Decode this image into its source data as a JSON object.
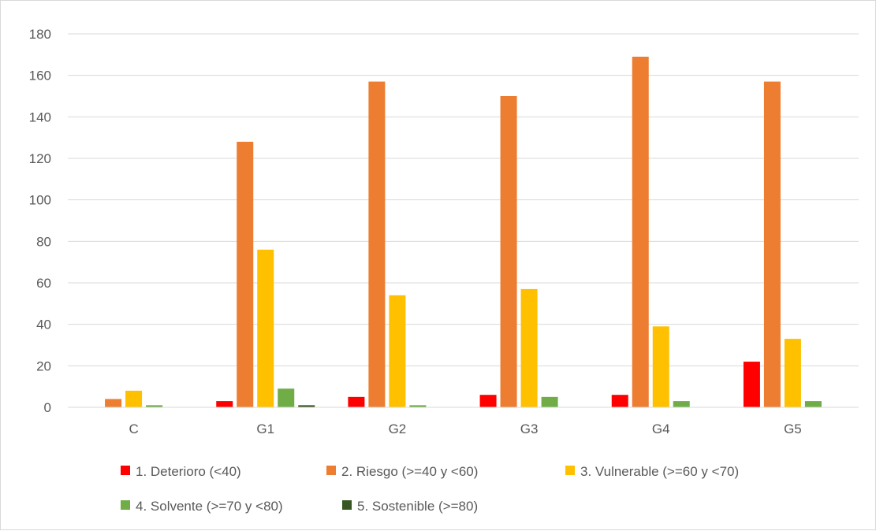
{
  "chart_data": {
    "type": "bar",
    "categories": [
      "C",
      "G1",
      "G2",
      "G3",
      "G4",
      "G5"
    ],
    "series": [
      {
        "name": "1. Deterioro (<40)",
        "color": "#ff0000",
        "values": [
          0,
          3,
          5,
          6,
          6,
          22
        ]
      },
      {
        "name": "2. Riesgo (>=40 y <60)",
        "color": "#ed7d31",
        "values": [
          4,
          128,
          157,
          150,
          169,
          157
        ]
      },
      {
        "name": "3. Vulnerable (>=60 y <70)",
        "color": "#ffc000",
        "values": [
          8,
          76,
          54,
          57,
          39,
          33
        ]
      },
      {
        "name": "4. Solvente (>=70 y <80)",
        "color": "#70ad47",
        "values": [
          1,
          9,
          1,
          5,
          3,
          3
        ]
      },
      {
        "name": "5. Sostenible (>=80)",
        "color": "#375623",
        "values": [
          0,
          1,
          0,
          0,
          0,
          0
        ]
      }
    ],
    "y_ticks": [
      "0",
      "20",
      "40",
      "60",
      "80",
      "100",
      "120",
      "140",
      "160",
      "180"
    ],
    "ylim": [
      0,
      180
    ],
    "grid": true,
    "legend_position": "bottom"
  }
}
